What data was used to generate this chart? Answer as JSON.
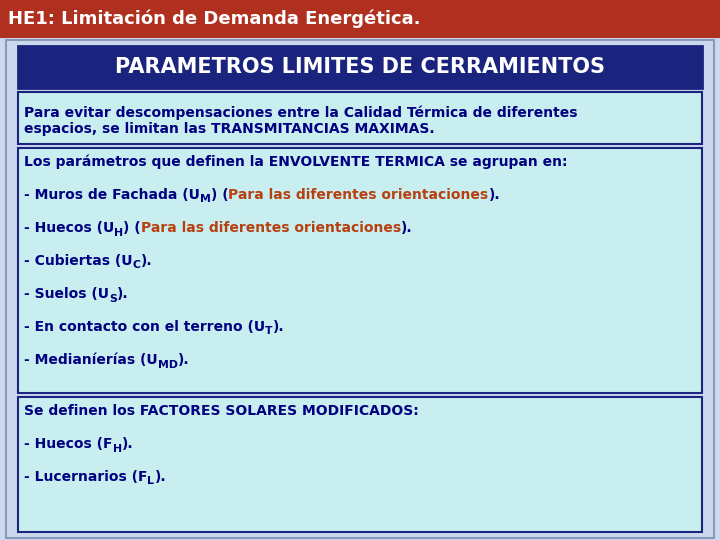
{
  "title": "HE1: Limitación de Demanda Energética.",
  "title_bg": "#b03020",
  "title_color": "#ffffff",
  "title_fontsize": 13,
  "main_bg": "#ccd8ec",
  "outer_border_color": "#8899bb",
  "inner_bg": "#c8eef0",
  "border_color": "#1a237e",
  "header_text": "PARAMETROS LIMITES DE CERRAMIENTOS",
  "header_bg": "#1a237e",
  "header_color": "#ffffff",
  "header_fontsize": 15,
  "box1_line1": "Para evitar descompensaciones entre la Calidad Térmica de diferentes",
  "box1_line2": "espacios, se limitan las TRANSMITANCIAS MAXIMAS.",
  "normal_color": "#000080",
  "orange_color": "#b84010",
  "fontsize": 10
}
